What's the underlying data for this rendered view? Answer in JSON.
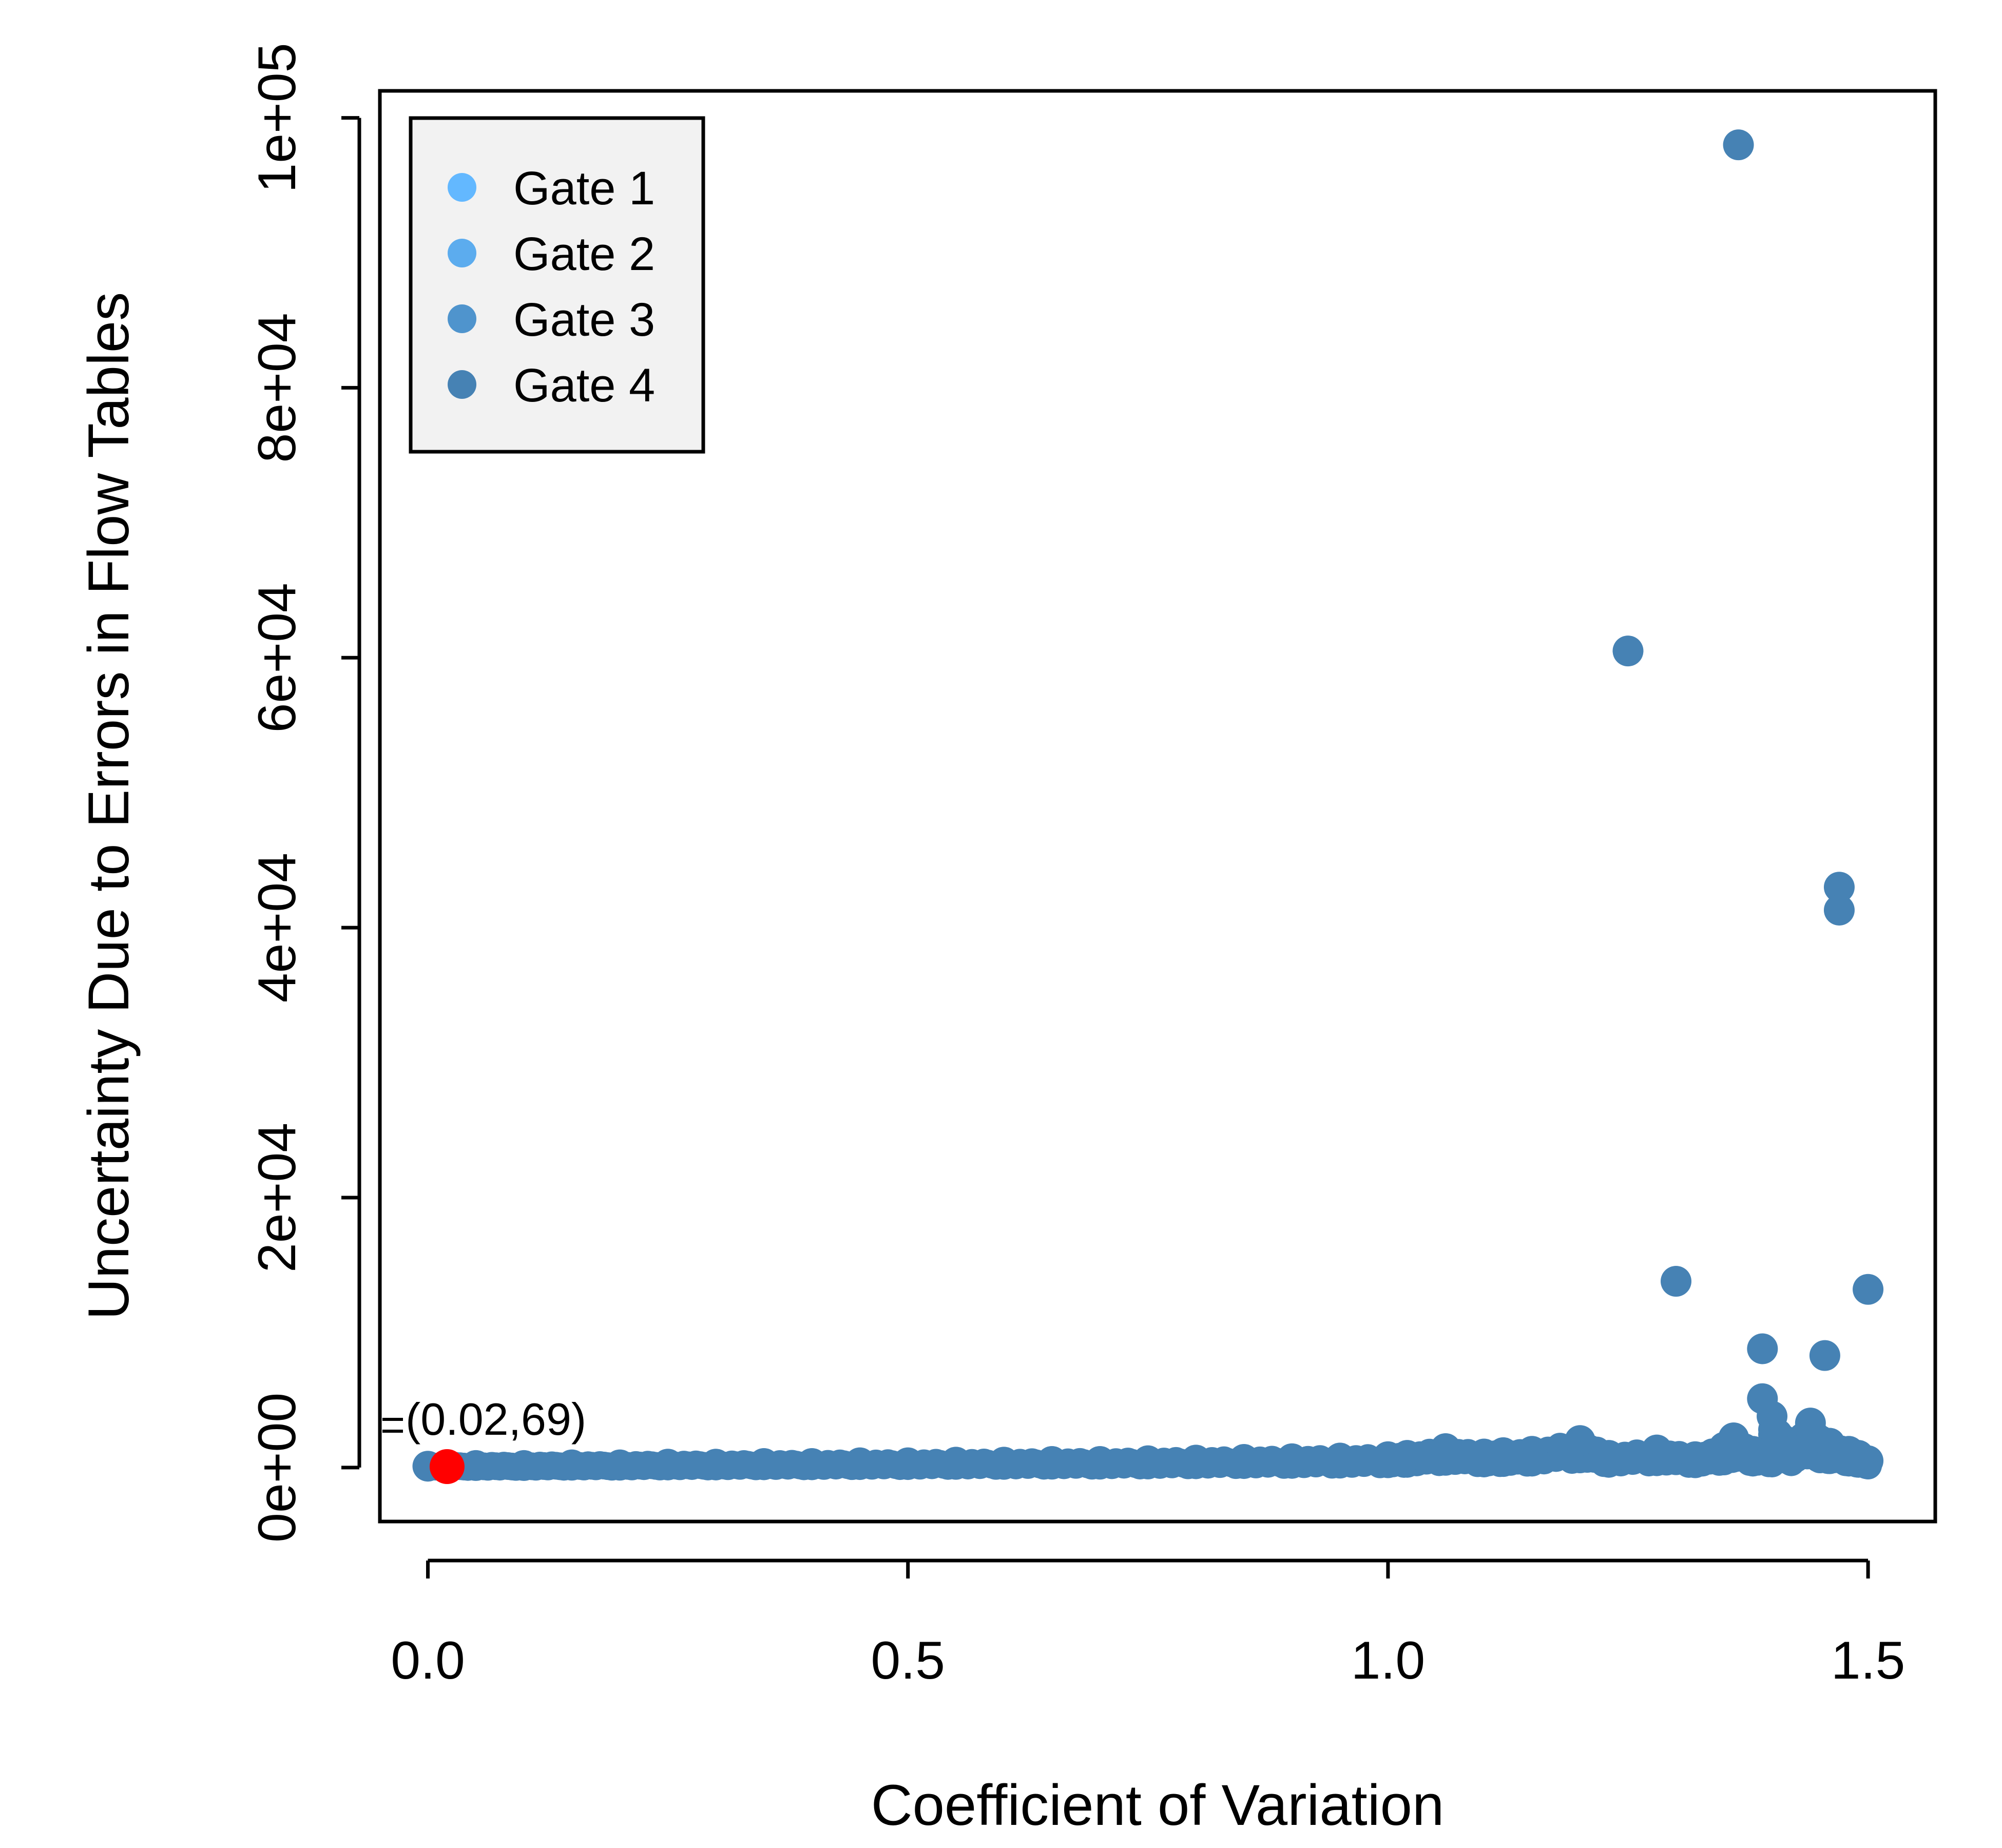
{
  "chart_data": {
    "type": "scatter",
    "xlabel": "Coefficient of Variation",
    "ylabel": "Uncertainty Due to Errors in Flow Tables",
    "xlim": [
      -0.05,
      1.57
    ],
    "ylim": [
      -4000,
      102000
    ],
    "x_ticks": [
      {
        "value": 0.0,
        "label": "0.0"
      },
      {
        "value": 0.5,
        "label": "0.5"
      },
      {
        "value": 1.0,
        "label": "1.0"
      },
      {
        "value": 1.5,
        "label": "1.5"
      }
    ],
    "y_ticks": [
      {
        "value": 0,
        "label": "0e+00"
      },
      {
        "value": 20000,
        "label": "2e+04"
      },
      {
        "value": 40000,
        "label": "4e+04"
      },
      {
        "value": 60000,
        "label": "6e+04"
      },
      {
        "value": 80000,
        "label": "8e+04"
      },
      {
        "value": 100000,
        "label": "1e+05"
      }
    ],
    "legend": {
      "position": "top-left",
      "entries": [
        {
          "label": "Gate 1",
          "color": "#63B8FF"
        },
        {
          "label": "Gate 2",
          "color": "#5CACEE"
        },
        {
          "label": "Gate 3",
          "color": "#4F94CD"
        },
        {
          "label": "Gate 4",
          "color": "#4682B4"
        }
      ]
    },
    "series": [
      {
        "color": "#4682B4",
        "points": [
          [
            0.0,
            100
          ],
          [
            0.05,
            150
          ],
          [
            0.1,
            150
          ],
          [
            0.15,
            200
          ],
          [
            0.2,
            200
          ],
          [
            0.25,
            250
          ],
          [
            0.3,
            250
          ],
          [
            0.35,
            300
          ],
          [
            0.4,
            300
          ],
          [
            0.45,
            350
          ],
          [
            0.5,
            350
          ],
          [
            0.55,
            400
          ],
          [
            0.6,
            400
          ],
          [
            0.65,
            450
          ],
          [
            0.7,
            450
          ],
          [
            0.75,
            500
          ],
          [
            0.8,
            550
          ],
          [
            0.85,
            600
          ],
          [
            0.9,
            650
          ],
          [
            0.95,
            700
          ],
          [
            1.0,
            800
          ],
          [
            1.02,
            900
          ],
          [
            1.06,
            1400
          ],
          [
            1.1,
            1000
          ],
          [
            1.12,
            1100
          ],
          [
            1.15,
            1200
          ],
          [
            1.2,
            2000
          ],
          [
            1.23,
            900
          ],
          [
            1.28,
            1300
          ],
          [
            1.32,
            800
          ],
          [
            1.35,
            1500
          ],
          [
            1.36,
            2200
          ],
          [
            1.38,
            1200
          ],
          [
            1.4,
            1000
          ],
          [
            1.42,
            1300
          ],
          [
            1.44,
            3300
          ],
          [
            1.45,
            2000
          ],
          [
            1.46,
            1800
          ],
          [
            1.48,
            1200
          ],
          [
            1.49,
            900
          ],
          [
            1.5,
            500
          ],
          [
            1.365,
            98000
          ],
          [
            1.25,
            60500
          ],
          [
            1.47,
            43000
          ],
          [
            1.47,
            41300
          ],
          [
            1.3,
            13800
          ],
          [
            1.5,
            13200
          ],
          [
            1.39,
            8800
          ],
          [
            1.455,
            8300
          ],
          [
            1.39,
            5100
          ],
          [
            1.4,
            3800
          ]
        ]
      }
    ],
    "highlight": {
      "x": 0.02,
      "y": 69,
      "color": "#FF0000",
      "label": "(0.02,69)"
    }
  }
}
